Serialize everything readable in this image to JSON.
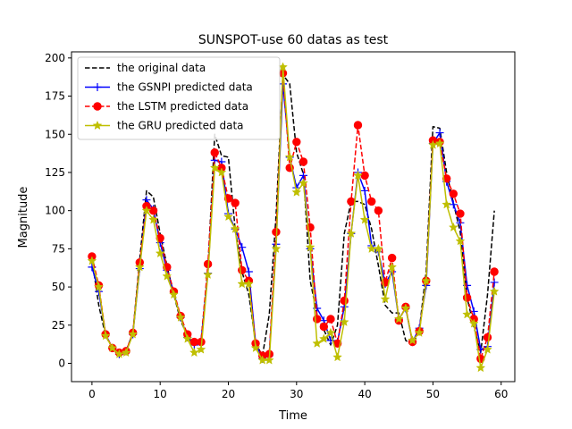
{
  "chart_data": {
    "type": "line",
    "title": "SUNSPOT-use 60 datas as test",
    "xlabel": "Time",
    "ylabel": "Magnitude",
    "xlim": [
      -3,
      62
    ],
    "ylim": [
      -12,
      204
    ],
    "xticks": [
      0,
      10,
      20,
      30,
      40,
      50,
      60
    ],
    "yticks": [
      0,
      25,
      50,
      75,
      100,
      125,
      150,
      175,
      200
    ],
    "grid": false,
    "legend_position": "top-left",
    "x": [
      0,
      1,
      2,
      3,
      4,
      5,
      6,
      7,
      8,
      9,
      10,
      11,
      12,
      13,
      14,
      15,
      16,
      17,
      18,
      19,
      20,
      21,
      22,
      23,
      24,
      25,
      26,
      27,
      28,
      29,
      30,
      31,
      32,
      33,
      34,
      35,
      36,
      37,
      38,
      39,
      40,
      41,
      42,
      43,
      44,
      45,
      46,
      47,
      48,
      49,
      50,
      51,
      52,
      53,
      54,
      55,
      56,
      57,
      58,
      59
    ],
    "series": [
      {
        "name": "the original data",
        "color": "#000000",
        "dash": "dashed",
        "marker": "none",
        "values": [
          68,
          38,
          18,
          10,
          7,
          8,
          20,
          68,
          113,
          109,
          85,
          64,
          45,
          28,
          18,
          12,
          15,
          62,
          150,
          136,
          135,
          88,
          60,
          45,
          13,
          5,
          32,
          97,
          189,
          183,
          138,
          124,
          54,
          32,
          22,
          12,
          25,
          85,
          106,
          106,
          104,
          88,
          64,
          38,
          33,
          33,
          15,
          12,
          22,
          60,
          155,
          154,
          125,
          105,
          86,
          43,
          24,
          7,
          45,
          100
        ]
      },
      {
        "name": "the GSNPI predicted data",
        "color": "#0000ff",
        "dash": "solid",
        "marker": "plus",
        "values": [
          63,
          47,
          19,
          10,
          6,
          8,
          19,
          62,
          107,
          101,
          79,
          61,
          46,
          30,
          17,
          12,
          14,
          59,
          133,
          132,
          98,
          88,
          76,
          60,
          13,
          3,
          5,
          78,
          183,
          135,
          115,
          123,
          75,
          36,
          28,
          15,
          14,
          37,
          85,
          125,
          113,
          77,
          73,
          52,
          60,
          29,
          36,
          14,
          23,
          51,
          144,
          151,
          119,
          104,
          92,
          51,
          34,
          9,
          11,
          53
        ]
      },
      {
        "name": "the LSTM predicted data",
        "color": "#ff0000",
        "dash": "dashed",
        "marker": "circle",
        "values": [
          70,
          51,
          19,
          10,
          7,
          8,
          20,
          66,
          103,
          100,
          82,
          63,
          47,
          31,
          19,
          14,
          14,
          65,
          138,
          128,
          108,
          105,
          61,
          54,
          13,
          5,
          6,
          86,
          190,
          128,
          145,
          132,
          89,
          29,
          24,
          29,
          13,
          41,
          106,
          156,
          123,
          106,
          100,
          53,
          69,
          28,
          37,
          14,
          21,
          54,
          146,
          145,
          121,
          111,
          98,
          43,
          29,
          3,
          17,
          60
        ]
      },
      {
        "name": "the GRU predicted data",
        "color": "#bfbf00",
        "dash": "solid",
        "marker": "star",
        "values": [
          67,
          50,
          18,
          10,
          6,
          7,
          19,
          63,
          100,
          94,
          72,
          57,
          45,
          30,
          16,
          7,
          9,
          58,
          128,
          125,
          96,
          88,
          52,
          52,
          10,
          2,
          2,
          75,
          194,
          135,
          112,
          118,
          76,
          13,
          16,
          20,
          4,
          27,
          85,
          123,
          94,
          75,
          75,
          42,
          63,
          29,
          36,
          15,
          20,
          54,
          143,
          144,
          104,
          89,
          80,
          32,
          26,
          -3,
          9,
          47
        ]
      }
    ]
  }
}
